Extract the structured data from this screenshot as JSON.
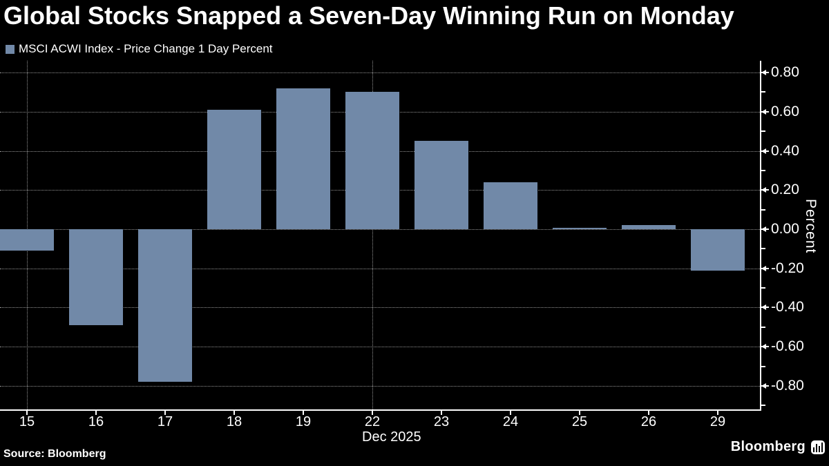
{
  "title": "Global Stocks Snapped a Seven-Day Winning Run on Monday",
  "legend_label": "MSCI ACWI Index - Price Change 1 Day Percent",
  "source": "Source: Bloomberg",
  "brand": "Bloomberg",
  "colors": {
    "background": "#000000",
    "bar": "#7189a8",
    "grid": "#c8c8c8",
    "axis": "#ffffff",
    "text": "#ffffff"
  },
  "chart_data": {
    "type": "bar",
    "title": "Global Stocks Snapped a Seven-Day Winning Run on Monday",
    "series_name": "MSCI ACWI Index - Price Change 1 Day Percent",
    "categories": [
      "15",
      "16",
      "17",
      "18",
      "19",
      "22",
      "23",
      "24",
      "25",
      "26",
      "29"
    ],
    "values": [
      -0.11,
      -0.49,
      -0.78,
      0.61,
      0.72,
      0.7,
      0.45,
      0.24,
      0.007,
      0.02,
      -0.21
    ],
    "xlabel": "Dec 2025",
    "ylabel": "Percent",
    "ylim": [
      -0.92,
      0.86
    ],
    "yticks": [
      0.8,
      0.6,
      0.4,
      0.2,
      0.0,
      -0.2,
      -0.4,
      -0.6,
      -0.8
    ],
    "minor_yticks": [
      0.7,
      0.5,
      0.3,
      0.1,
      -0.1,
      -0.3,
      -0.5,
      -0.7,
      -0.9
    ],
    "vertical_gridlines_at": [
      "15",
      "22"
    ],
    "grid": true,
    "legend_position": "top-left",
    "x_axis_label": "Dec 2025"
  }
}
